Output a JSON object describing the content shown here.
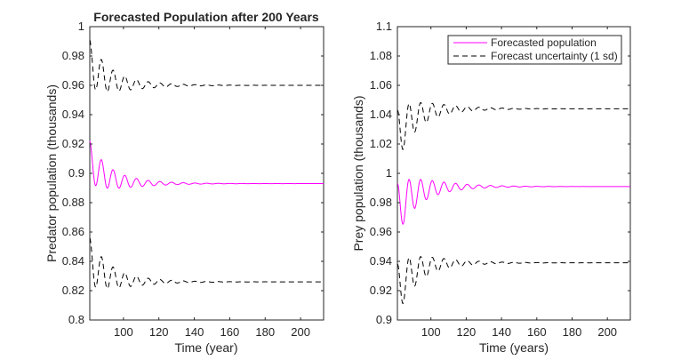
{
  "chart_data": [
    {
      "type": "line",
      "title": "Forecasted Population after 200 Years",
      "xlabel": "Time (year)",
      "ylabel": "Predator population (thousands)",
      "xlim": [
        81,
        213
      ],
      "ylim": [
        0.8,
        1.0
      ],
      "xticks": [
        100,
        120,
        140,
        160,
        180,
        200
      ],
      "yticks": [
        0.8,
        0.82,
        0.84,
        0.86,
        0.88,
        0.9,
        0.92,
        0.94,
        0.96,
        0.98,
        1
      ],
      "grid": false,
      "series": [
        {
          "role": "forecast",
          "color": "#ff00ff",
          "dash": "solid",
          "start": 0.908,
          "end": 0.893,
          "amp0": 0.014,
          "decay": 0.06,
          "period": 6.6
        },
        {
          "role": "upper",
          "color": "#000000",
          "dash": "dashed",
          "start": 0.975,
          "end": 0.96,
          "amp0": 0.016,
          "decay": 0.06,
          "period": 6.6
        },
        {
          "role": "lower",
          "color": "#000000",
          "dash": "dashed",
          "start": 0.84,
          "end": 0.826,
          "amp0": 0.016,
          "decay": 0.06,
          "period": 6.6
        }
      ]
    },
    {
      "type": "line",
      "title": "",
      "xlabel": "Time (years)",
      "ylabel": "Prey population (thousands)",
      "xlim": [
        81,
        213
      ],
      "ylim": [
        0.9,
        1.1
      ],
      "xticks": [
        100,
        120,
        140,
        160,
        180,
        200
      ],
      "yticks": [
        0.9,
        0.92,
        0.94,
        0.96,
        0.98,
        1,
        1.02,
        1.04,
        1.06,
        1.08,
        1.1
      ],
      "grid": false,
      "legend": {
        "placement": "top-right",
        "entries": [
          "Forecasted population",
          "Forecast uncertainty (1 sd)"
        ]
      },
      "series": [
        {
          "role": "forecast",
          "color": "#ff00ff",
          "dash": "solid",
          "start": 0.975,
          "end": 0.991,
          "amp0": 0.018,
          "decay": 0.06,
          "period": 6.6
        },
        {
          "role": "upper",
          "color": "#000000",
          "dash": "dashed",
          "start": 1.025,
          "end": 1.044,
          "amp0": 0.018,
          "decay": 0.06,
          "period": 6.6
        },
        {
          "role": "lower",
          "color": "#000000",
          "dash": "dashed",
          "start": 0.92,
          "end": 0.939,
          "amp0": 0.018,
          "decay": 0.06,
          "period": 6.6
        }
      ]
    }
  ]
}
